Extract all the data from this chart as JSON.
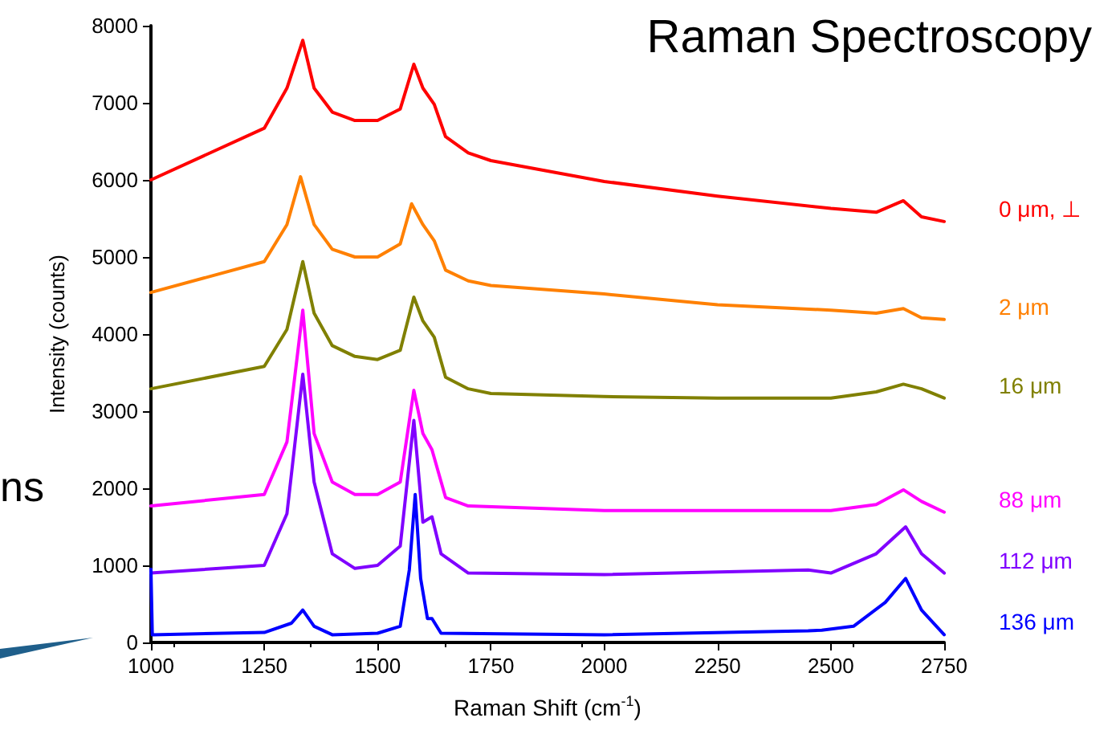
{
  "chart_data": {
    "type": "line",
    "title": "Raman Spectroscopy",
    "xlabel": "Raman Shift (cm$^{-1}$)",
    "ylabel": "Intensity (counts)",
    "annotations": [
      "ns"
    ],
    "xlim": [
      1000,
      2750
    ],
    "xticks": [
      1000,
      1250,
      1500,
      1750,
      2000,
      2250,
      2500,
      2750
    ],
    "ylim": [
      0,
      8000
    ],
    "yticks": [
      0,
      1000,
      2000,
      3000,
      4000,
      5000,
      6000,
      7000,
      8000
    ],
    "grid": false,
    "legend": false,
    "marker": "none",
    "line_style": "solid",
    "series": [
      {
        "name": "0 μm, ⊥",
        "color": "#ff0000",
        "x": [
          1000,
          1250,
          1300,
          1335,
          1360,
          1400,
          1450,
          1500,
          1550,
          1580,
          1600,
          1625,
          1650,
          1700,
          1750,
          2000,
          2250,
          2500,
          2600,
          2660,
          2700,
          2750
        ],
        "values": [
          6000,
          6670,
          7190,
          7810,
          7190,
          6880,
          6770,
          6770,
          6920,
          7500,
          7190,
          6980,
          6560,
          6350,
          6250,
          5980,
          5790,
          5630,
          5580,
          5730,
          5520,
          5460
        ]
      },
      {
        "name": "2 μm",
        "color": "#ff8000",
        "x": [
          1000,
          1250,
          1300,
          1330,
          1360,
          1400,
          1450,
          1500,
          1550,
          1575,
          1600,
          1625,
          1650,
          1700,
          1750,
          2000,
          2250,
          2500,
          2600,
          2660,
          2700,
          2750
        ],
        "values": [
          4540,
          4940,
          5420,
          6040,
          5420,
          5100,
          5000,
          5000,
          5170,
          5690,
          5420,
          5210,
          4830,
          4690,
          4630,
          4520,
          4380,
          4310,
          4270,
          4330,
          4210,
          4190
        ]
      },
      {
        "name": "16 μm",
        "color": "#808000",
        "x": [
          1000,
          1250,
          1300,
          1335,
          1360,
          1400,
          1450,
          1500,
          1550,
          1580,
          1600,
          1625,
          1650,
          1700,
          1750,
          2000,
          2250,
          2500,
          2600,
          2660,
          2700,
          2750
        ],
        "values": [
          3290,
          3580,
          4060,
          4940,
          4270,
          3850,
          3710,
          3670,
          3790,
          4480,
          4170,
          3960,
          3440,
          3290,
          3230,
          3190,
          3170,
          3170,
          3250,
          3350,
          3290,
          3170
        ]
      },
      {
        "name": "88 μm",
        "color": "#ff00ff",
        "x": [
          1000,
          1250,
          1300,
          1335,
          1360,
          1400,
          1450,
          1500,
          1550,
          1580,
          1600,
          1620,
          1650,
          1700,
          2000,
          2500,
          2600,
          2660,
          2700,
          2750
        ],
        "values": [
          1770,
          1920,
          2600,
          4310,
          2710,
          2080,
          1920,
          1920,
          2080,
          3270,
          2710,
          2500,
          1880,
          1770,
          1710,
          1710,
          1790,
          1980,
          1830,
          1690
        ]
      },
      {
        "name": "112 μm",
        "color": "#8000ff",
        "x": [
          1000,
          1250,
          1300,
          1335,
          1360,
          1400,
          1450,
          1500,
          1550,
          1580,
          1600,
          1620,
          1640,
          1700,
          2000,
          2450,
          2500,
          2600,
          2665,
          2700,
          2750
        ],
        "values": [
          900,
          1000,
          1670,
          3480,
          2080,
          1150,
          960,
          1000,
          1250,
          2880,
          1560,
          1630,
          1150,
          900,
          880,
          940,
          900,
          1150,
          1500,
          1150,
          900
        ]
      },
      {
        "name": "136 μm",
        "color": "#0000ff",
        "x": [
          1000,
          1003,
          1250,
          1310,
          1335,
          1360,
          1400,
          1500,
          1550,
          1570,
          1583,
          1595,
          1610,
          1620,
          1640,
          2000,
          2450,
          2480,
          2550,
          2620,
          2665,
          2700,
          2750
        ],
        "values": [
          950,
          100,
          130,
          250,
          420,
          210,
          100,
          120,
          210,
          940,
          1920,
          830,
          310,
          310,
          120,
          100,
          150,
          160,
          210,
          520,
          830,
          420,
          100
        ]
      }
    ]
  }
}
